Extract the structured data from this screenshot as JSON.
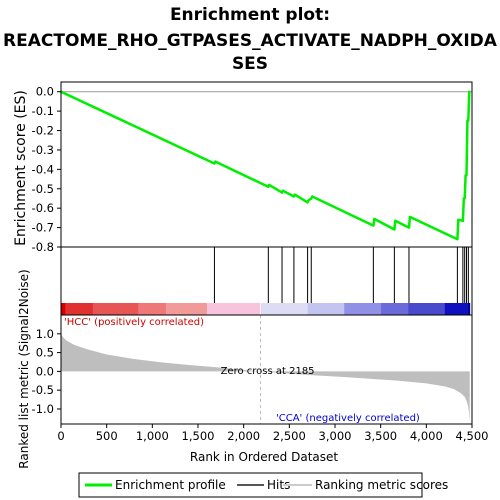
{
  "chart_data": {
    "type": "line",
    "title_lines": [
      "Enrichment plot:",
      "REACTOME_RHO_GTPASES_ACTIVATE_NADPH_OXIDA",
      "SES"
    ],
    "xlabel": "Rank in Ordered Dataset",
    "es_ylabel": "Enrichment score (ES)",
    "metric_ylabel": "Ranked list metric (Signal2Noise)",
    "xlim": [
      0,
      4500
    ],
    "x_ticks": [
      0,
      500,
      1000,
      1500,
      2000,
      2500,
      3000,
      3500,
      4000,
      4500
    ],
    "x_tick_labels": [
      "0",
      "500",
      "1,000",
      "1,500",
      "2,000",
      "2,500",
      "3,000",
      "3,500",
      "4,000",
      "4,500"
    ],
    "es_ylim": [
      -0.8,
      0.05
    ],
    "es_ticks": [
      0.0,
      -0.1,
      -0.2,
      -0.3,
      -0.4,
      -0.5,
      -0.6,
      -0.7,
      -0.8
    ],
    "es_tick_labels": [
      "0.0",
      "-0.1",
      "-0.2",
      "-0.3",
      "-0.4",
      "-0.5",
      "-0.6",
      "-0.7",
      "-0.8"
    ],
    "metric_ylim": [
      -1.4,
      1.5
    ],
    "metric_ticks": [
      1.0,
      0.5,
      0.0,
      -0.5,
      -1.0
    ],
    "metric_tick_labels": [
      "1.0",
      "0.5",
      "0.0",
      "-0.5",
      "-1.0"
    ],
    "enrichment_profile": {
      "name": "Enrichment profile",
      "x": [
        0,
        1680,
        1690,
        2270,
        2280,
        2420,
        2430,
        2550,
        2560,
        2700,
        2710,
        2740,
        2750,
        3420,
        3430,
        3650,
        3660,
        3810,
        3820,
        4340,
        4350,
        4400,
        4410,
        4420,
        4430,
        4440,
        4450,
        4460,
        4470
      ],
      "y": [
        0.0,
        -0.37,
        -0.36,
        -0.49,
        -0.48,
        -0.52,
        -0.51,
        -0.54,
        -0.53,
        -0.57,
        -0.56,
        -0.55,
        -0.54,
        -0.69,
        -0.655,
        -0.71,
        -0.665,
        -0.7,
        -0.645,
        -0.76,
        -0.66,
        -0.665,
        -0.55,
        -0.55,
        -0.43,
        -0.43,
        -0.15,
        -0.15,
        0.005
      ]
    },
    "hits": {
      "name": "Hits",
      "x": [
        1680,
        2270,
        2420,
        2550,
        2700,
        2740,
        3420,
        3650,
        3810,
        4340,
        4400,
        4420,
        4440,
        4460
      ]
    },
    "ranking_metric": {
      "name": "Ranking metric scores",
      "x": [
        0,
        20,
        60,
        150,
        300,
        500,
        800,
        1100,
        1400,
        1700,
        2000,
        2185,
        2500,
        2800,
        3100,
        3400,
        3700,
        4000,
        4200,
        4300,
        4380,
        4420,
        4440,
        4455,
        4465,
        4475
      ],
      "y": [
        1.0,
        0.92,
        0.82,
        0.7,
        0.58,
        0.45,
        0.33,
        0.24,
        0.17,
        0.11,
        0.04,
        0.0,
        -0.06,
        -0.11,
        -0.15,
        -0.2,
        -0.25,
        -0.32,
        -0.4,
        -0.47,
        -0.58,
        -0.68,
        -0.78,
        -0.9,
        -1.05,
        -1.35
      ]
    },
    "zero_cross": {
      "x": 2185,
      "label": "Zero cross at 2185"
    },
    "positive_label": "'HCC' (positively correlated)",
    "negative_label": "'CCA' (negatively correlated)",
    "colors": {
      "profile": "#00ee00",
      "positive": "#cc0000",
      "negative": "#0000cc",
      "metric_fill": "#bebebe",
      "hit": "#000000"
    },
    "color_bar_segments": [
      {
        "from": 0,
        "to": 50,
        "color": "#d40000"
      },
      {
        "from": 50,
        "to": 350,
        "color": "#e03030"
      },
      {
        "from": 350,
        "to": 850,
        "color": "#e85555"
      },
      {
        "from": 850,
        "to": 1150,
        "color": "#ee7777"
      },
      {
        "from": 1150,
        "to": 1600,
        "color": "#f29a9a"
      },
      {
        "from": 1600,
        "to": 2200,
        "color": "#f8c4dd"
      },
      {
        "from": 2200,
        "to": 2700,
        "color": "#dcdcf4"
      },
      {
        "from": 2700,
        "to": 3100,
        "color": "#c4c4f0"
      },
      {
        "from": 3100,
        "to": 3500,
        "color": "#9090e6"
      },
      {
        "from": 3500,
        "to": 3800,
        "color": "#6a6ad8"
      },
      {
        "from": 3800,
        "to": 4200,
        "color": "#4a4acc"
      },
      {
        "from": 4200,
        "to": 4450,
        "color": "#1010c0"
      },
      {
        "from": 4450,
        "to": 4480,
        "color": "#0000a0"
      }
    ],
    "legend": [
      "Enrichment profile",
      "Hits",
      "Ranking metric scores"
    ]
  }
}
